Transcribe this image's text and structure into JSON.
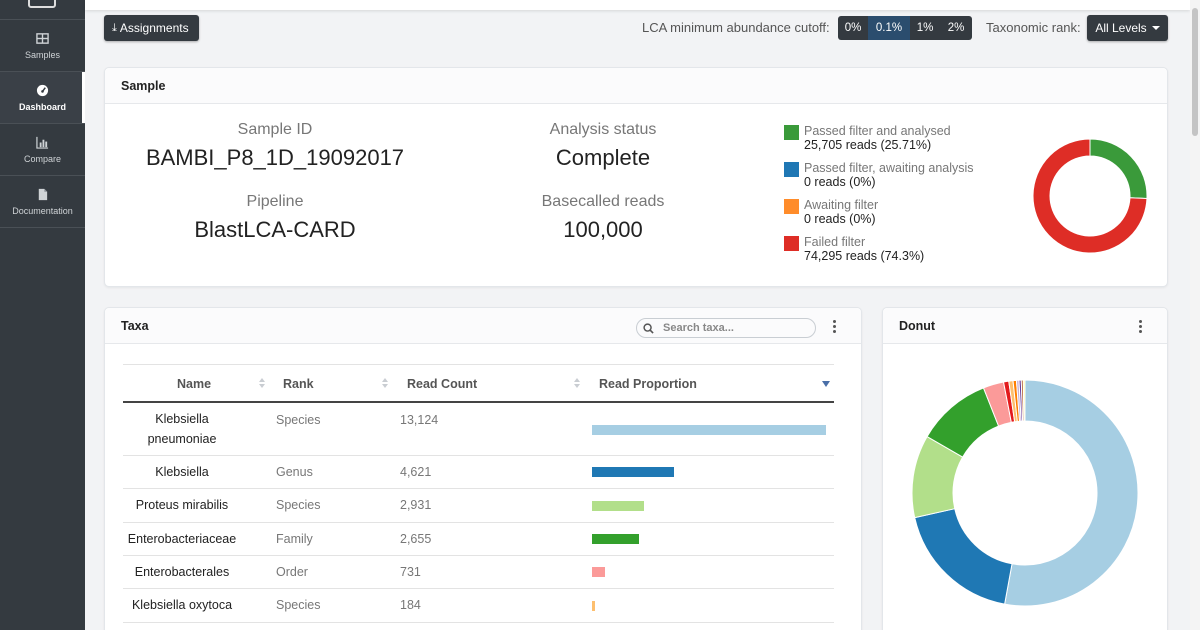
{
  "sidebar": {
    "items": [
      {
        "label": "Samples",
        "icon": "table-icon",
        "active": false
      },
      {
        "label": "Dashboard",
        "icon": "gauge-icon",
        "active": true
      },
      {
        "label": "Compare",
        "icon": "bar-chart-icon",
        "active": false
      },
      {
        "label": "Documentation",
        "icon": "document-icon",
        "active": false
      }
    ]
  },
  "toolbar": {
    "assignments_label": "Assignments",
    "cutoff_label": "LCA minimum abundance cutoff:",
    "cutoff_options": [
      "0%",
      "0.1%",
      "1%",
      "2%"
    ],
    "cutoff_selected": "0.1%",
    "rank_label": "Taxonomic rank:",
    "rank_value": "All Levels"
  },
  "sample": {
    "title": "Sample",
    "sample_id_label": "Sample ID",
    "sample_id": "BAMBI_P8_1D_19092017",
    "pipeline_label": "Pipeline",
    "pipeline": "BlastLCA-CARD",
    "status_label": "Analysis status",
    "status": "Complete",
    "reads_label": "Basecalled reads",
    "reads": "100,000",
    "legend": [
      {
        "name": "Passed filter and analysed",
        "reads": "25,705 reads (25.71%)",
        "color": "#3a9a3a",
        "value": 25.71
      },
      {
        "name": "Passed filter, awaiting analysis",
        "reads": "0 reads (0%)",
        "color": "#1f77b4",
        "value": 0
      },
      {
        "name": "Awaiting filter",
        "reads": "0 reads (0%)",
        "color": "#ff8c2a",
        "value": 0
      },
      {
        "name": "Failed filter",
        "reads": "74,295 reads (74.3%)",
        "color": "#de2d26",
        "value": 74.3
      }
    ]
  },
  "taxa": {
    "title": "Taxa",
    "search_placeholder": "Search taxa...",
    "columns": [
      "Name",
      "Rank",
      "Read Count",
      "Read Proportion"
    ],
    "rows": [
      {
        "name": "Klebsiella pneumoniae",
        "rank": "Species",
        "count": "13,124",
        "proportion": 1.0,
        "color": "#a6cee3"
      },
      {
        "name": "Klebsiella",
        "rank": "Genus",
        "count": "4,621",
        "proportion": 0.352,
        "color": "#1f78b4"
      },
      {
        "name": "Proteus mirabilis",
        "rank": "Species",
        "count": "2,931",
        "proportion": 0.223,
        "color": "#b2df8a"
      },
      {
        "name": "Enterobacteriaceae",
        "rank": "Family",
        "count": "2,655",
        "proportion": 0.202,
        "color": "#33a02c"
      },
      {
        "name": "Enterobacterales",
        "rank": "Order",
        "count": "731",
        "proportion": 0.056,
        "color": "#fb9a99"
      },
      {
        "name": "Klebsiella oxytoca",
        "rank": "Species",
        "count": "184",
        "proportion": 0.014,
        "color": "#fdbf6f"
      }
    ]
  },
  "donut": {
    "title": "Donut",
    "slices": [
      {
        "value": 13124,
        "color": "#a6cee3"
      },
      {
        "value": 4621,
        "color": "#1f78b4"
      },
      {
        "value": 2931,
        "color": "#b2df8a"
      },
      {
        "value": 2655,
        "color": "#33a02c"
      },
      {
        "value": 731,
        "color": "#fb9a99"
      },
      {
        "value": 184,
        "color": "#e31a1c"
      },
      {
        "value": 150,
        "color": "#fdbf6f"
      },
      {
        "value": 120,
        "color": "#ff7f00"
      },
      {
        "value": 90,
        "color": "#cab2d6"
      },
      {
        "value": 80,
        "color": "#6a3d9a"
      },
      {
        "value": 70,
        "color": "#b15928"
      },
      {
        "value": 60,
        "color": "#ffff99"
      }
    ]
  }
}
